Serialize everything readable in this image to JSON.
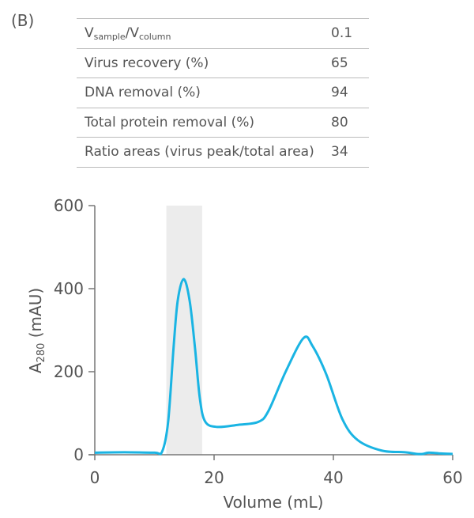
{
  "panel_label": "(B)",
  "table": {
    "ratio_label": {
      "v1": "V",
      "s1": "sample",
      "v2": "/V",
      "s2": "column"
    },
    "rows": [
      {
        "label": "",
        "value": "0.1"
      },
      {
        "label": "Virus recovery (%)",
        "value": "65"
      },
      {
        "label": "DNA removal (%)",
        "value": "94"
      },
      {
        "label": "Total protein removal (%)",
        "value": "80"
      },
      {
        "label": "Ratio areas (virus peak/total area)",
        "value": "34"
      }
    ]
  },
  "chart_data": {
    "type": "line",
    "xlabel": "Volume (mL)",
    "ylabel": {
      "main": "A",
      "sub": "280",
      "unit": " (mAU)"
    },
    "xlim": [
      0,
      60
    ],
    "ylim": [
      0,
      600
    ],
    "xticks": [
      "0",
      "20",
      "40",
      "60"
    ],
    "yticks": [
      "0",
      "200",
      "400",
      "600"
    ],
    "grid": false,
    "line_color": "#1ab4e3",
    "shaded_region": {
      "x": [
        12,
        18
      ],
      "color": "#ececec"
    },
    "series": [
      {
        "x": [
          0,
          5,
          10,
          11.3,
          12.3,
          13.2,
          13.9,
          14.9,
          15.9,
          16.8,
          17.6,
          18.5,
          20.5,
          24,
          27.4,
          29.1,
          32,
          35,
          36.5,
          38.8,
          41.5,
          44.1,
          48.1,
          52,
          54,
          55,
          56,
          58,
          60
        ],
        "y": [
          5,
          6,
          5,
          8,
          80,
          257,
          371,
          423,
          371,
          257,
          137,
          80,
          67,
          72,
          79,
          105,
          200,
          281,
          262,
          194,
          86,
          35,
          10,
          6,
          2,
          2,
          5,
          3,
          2
        ]
      }
    ]
  }
}
